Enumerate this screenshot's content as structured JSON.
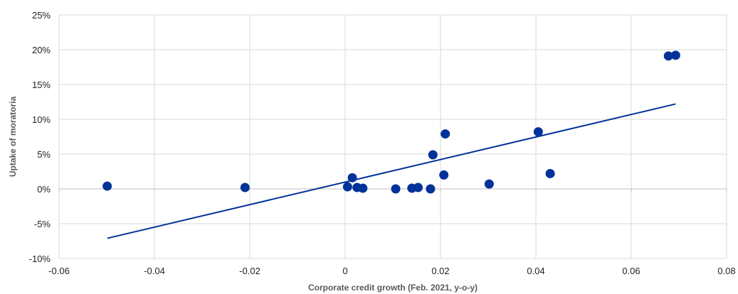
{
  "chart_data": {
    "type": "scatter",
    "title": "",
    "xlabel": "Corporate credit growth (Feb. 2021, y-o-y)",
    "ylabel": "Uptake of moratoria",
    "xlim": [
      -0.06,
      0.08
    ],
    "ylim": [
      -0.1,
      0.25
    ],
    "x_ticks": [
      -0.06,
      -0.04,
      -0.02,
      0,
      0.02,
      0.04,
      0.06,
      0.08
    ],
    "x_tick_labels": [
      "-0.06",
      "-0.04",
      "-0.02",
      "0",
      "0.02",
      "0.04",
      "0.06",
      "0.08"
    ],
    "y_ticks": [
      -0.1,
      -0.05,
      0,
      0.05,
      0.1,
      0.15,
      0.2,
      0.25
    ],
    "y_tick_labels": [
      "-10%",
      "-5%",
      "0%",
      "5%",
      "10%",
      "15%",
      "20%",
      "25%"
    ],
    "grid": "horizontal",
    "legend": "none",
    "marker_color": "#003299",
    "trendline_color": "#003299",
    "points": [
      {
        "x": -0.0499,
        "y": 0.004
      },
      {
        "x": -0.021,
        "y": 0.002
      },
      {
        "x": 0.0005,
        "y": 0.003
      },
      {
        "x": 0.0015,
        "y": 0.016
      },
      {
        "x": 0.0025,
        "y": 0.002
      },
      {
        "x": 0.0037,
        "y": 0.001
      },
      {
        "x": 0.0106,
        "y": 0.0
      },
      {
        "x": 0.014,
        "y": 0.001
      },
      {
        "x": 0.0153,
        "y": 0.002
      },
      {
        "x": 0.0179,
        "y": 0.0
      },
      {
        "x": 0.0184,
        "y": 0.049
      },
      {
        "x": 0.0207,
        "y": 0.02
      },
      {
        "x": 0.021,
        "y": 0.079
      },
      {
        "x": 0.0302,
        "y": 0.007
      },
      {
        "x": 0.0405,
        "y": 0.082
      },
      {
        "x": 0.043,
        "y": 0.022
      },
      {
        "x": 0.0678,
        "y": 0.191
      },
      {
        "x": 0.0693,
        "y": 0.192
      }
    ],
    "trendline": {
      "type": "linear",
      "x": [
        -0.0499,
        0.0693
      ],
      "y": [
        -0.071,
        0.122
      ]
    }
  }
}
